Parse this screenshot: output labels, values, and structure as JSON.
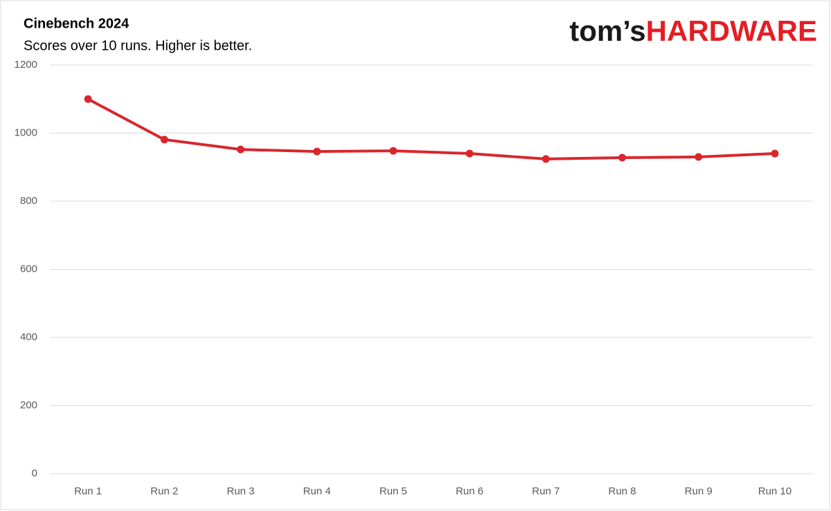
{
  "chart_data": {
    "type": "line",
    "title": "Cinebench 2024",
    "subtitle": "Scores over 10 runs. Higher is better.",
    "logo": [
      "tom’s",
      "HARDWARE"
    ],
    "categories": [
      "Run 1",
      "Run 2",
      "Run 3",
      "Run 4",
      "Run 5",
      "Run 6",
      "Run 7",
      "Run 8",
      "Run 9",
      "Run 10"
    ],
    "values": [
      1100,
      981,
      952,
      946,
      948,
      940,
      924,
      928,
      930,
      940
    ],
    "color": "#d9262c",
    "ylim": [
      0,
      1200
    ],
    "yticks": [
      0,
      200,
      400,
      600,
      800,
      1000,
      1200
    ],
    "grid": true
  }
}
